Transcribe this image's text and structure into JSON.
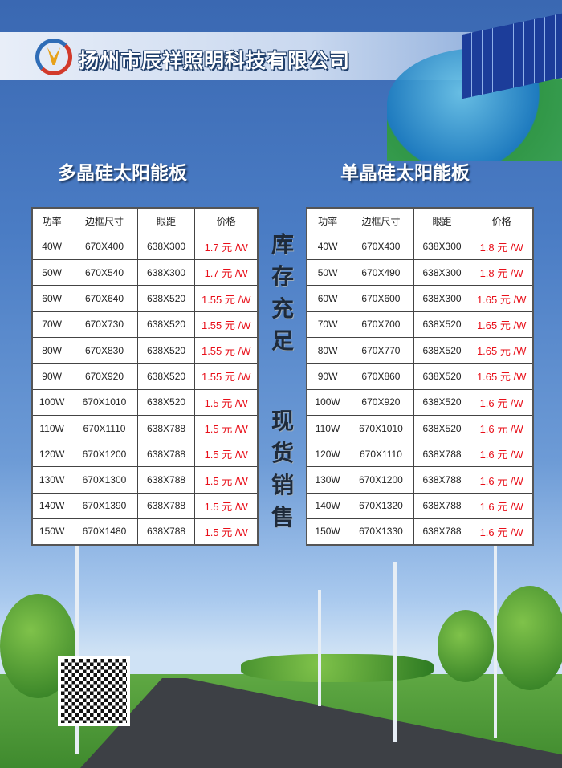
{
  "header": {
    "company": "扬州市辰祥照明科技有限公司",
    "logo": "company-logo"
  },
  "left": {
    "title": "多晶硅太阳能板",
    "columns": [
      "功率",
      "边框尺寸",
      "眼距",
      "价格"
    ],
    "rows": [
      [
        "40W",
        "670X400",
        "638X300",
        "1.7 元 /W"
      ],
      [
        "50W",
        "670X540",
        "638X300",
        "1.7 元 /W"
      ],
      [
        "60W",
        "670X640",
        "638X520",
        "1.55 元 /W"
      ],
      [
        "70W",
        "670X730",
        "638X520",
        "1.55 元 /W"
      ],
      [
        "80W",
        "670X830",
        "638X520",
        "1.55 元 /W"
      ],
      [
        "90W",
        "670X920",
        "638X520",
        "1.55 元 /W"
      ],
      [
        "100W",
        "670X1010",
        "638X520",
        "1.5 元 /W"
      ],
      [
        "110W",
        "670X1110",
        "638X788",
        "1.5 元 /W"
      ],
      [
        "120W",
        "670X1200",
        "638X788",
        "1.5 元 /W"
      ],
      [
        "130W",
        "670X1300",
        "638X788",
        "1.5 元 /W"
      ],
      [
        "140W",
        "670X1390",
        "638X788",
        "1.5 元 /W"
      ],
      [
        "150W",
        "670X1480",
        "638X788",
        "1.5 元 /W"
      ]
    ]
  },
  "right": {
    "title": "单晶硅太阳能板",
    "columns": [
      "功率",
      "边框尺寸",
      "眼距",
      "价格"
    ],
    "rows": [
      [
        "40W",
        "670X430",
        "638X300",
        "1.8 元 /W"
      ],
      [
        "50W",
        "670X490",
        "638X300",
        "1.8 元 /W"
      ],
      [
        "60W",
        "670X600",
        "638X300",
        "1.65 元 /W"
      ],
      [
        "70W",
        "670X700",
        "638X520",
        "1.65 元 /W"
      ],
      [
        "80W",
        "670X770",
        "638X520",
        "1.65 元 /W"
      ],
      [
        "90W",
        "670X860",
        "638X520",
        "1.65 元 /W"
      ],
      [
        "100W",
        "670X920",
        "638X520",
        "1.6 元 /W"
      ],
      [
        "110W",
        "670X1010",
        "638X520",
        "1.6 元 /W"
      ],
      [
        "120W",
        "670X1110",
        "638X788",
        "1.6 元 /W"
      ],
      [
        "130W",
        "670X1200",
        "638X788",
        "1.6 元 /W"
      ],
      [
        "140W",
        "670X1320",
        "638X788",
        "1.6 元 /W"
      ],
      [
        "150W",
        "670X1330",
        "638X788",
        "1.6 元 /W"
      ]
    ]
  },
  "slogans": [
    "库存充足",
    "现货销售"
  ],
  "colors": {
    "price": "#e8101a",
    "sky": "#3a68b2"
  }
}
